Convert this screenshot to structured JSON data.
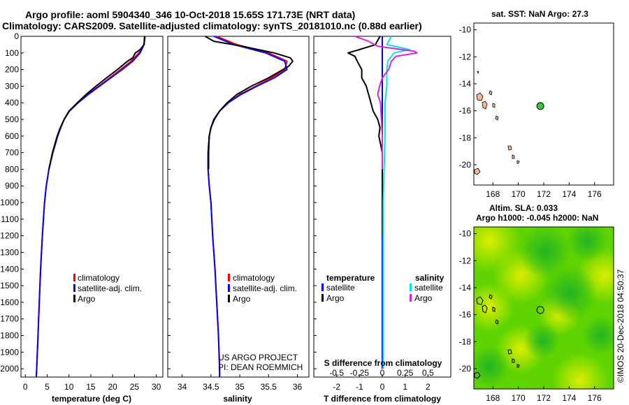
{
  "title_line1": "Argo profile: aoml 5904340_346 10-Oct-2018 15.65S 171.73E (NRT data)",
  "title_line2": "Climatology: CARS2009. Satellite-adjusted climatology: synTS_20181010.nc (0.88d earlier)",
  "sst_label": "sat. SST: NaN Argo: 27.3",
  "sla_label1": "Altim. SLA: 0.033",
  "sla_label2": "Argo h1000: -0.045 h2000: NaN",
  "credit": "©IMOS 20-Dec-2018 04:50:37",
  "project_line1": "US ARGO PROJECT",
  "project_line2": "PI: DEAN ROEMMICH",
  "colors": {
    "climatology": "#ff0000",
    "satellite": "#0000ff",
    "argo": "#000000",
    "sal_sat": "#00e5e5",
    "sal_argo": "#e020e0",
    "land": "#f5b88f",
    "float": "#33cc33"
  },
  "legend": {
    "climatology": "climatology",
    "satellite_adj": "satellite-adj. clim.",
    "argo": "Argo",
    "temperature": "temperature",
    "salinity": "salinity",
    "satellite": "satellite"
  },
  "chart_data": [
    {
      "type": "line",
      "name": "temperature",
      "xlabel": "temperature (deg C)",
      "ylabel": "",
      "xlim": [
        -1,
        31.5
      ],
      "ylim": [
        2050,
        0
      ],
      "xticks": [
        "0",
        "5",
        "10",
        "15",
        "20",
        "25",
        "30"
      ],
      "yticks": [
        "0",
        "100",
        "200",
        "300",
        "400",
        "500",
        "600",
        "700",
        "800",
        "900",
        "1000",
        "1100",
        "1200",
        "1300",
        "1400",
        "1500",
        "1600",
        "1700",
        "1800",
        "1900",
        "2000"
      ],
      "series": [
        {
          "name": "climatology",
          "depth": [
            0,
            50,
            100,
            150,
            200,
            250,
            300,
            350,
            400,
            450,
            500,
            550,
            600,
            700,
            800,
            900,
            1000,
            1200,
            1400,
            1600,
            1800,
            2000,
            2050
          ],
          "values": [
            27.4,
            27.2,
            26.0,
            24.2,
            21.8,
            19.3,
            16.8,
            14.3,
            12.0,
            10.1,
            8.9,
            8.1,
            7.4,
            6.3,
            5.4,
            4.8,
            4.4,
            3.9,
            3.5,
            3.2,
            2.9,
            2.6,
            2.5
          ]
        },
        {
          "name": "satellite-adj. clim.",
          "depth": [
            0,
            50,
            100,
            150,
            200,
            250,
            300,
            350,
            400,
            450,
            500,
            550,
            600,
            700,
            800,
            900,
            1000,
            1200,
            1400,
            1600,
            1800,
            2000,
            2050
          ],
          "values": [
            27.4,
            27.2,
            26.3,
            24.6,
            22.2,
            19.6,
            17.0,
            14.4,
            12.1,
            10.1,
            8.9,
            8.1,
            7.4,
            6.3,
            5.4,
            4.8,
            4.4,
            3.9,
            3.5,
            3.2,
            2.9,
            2.6,
            2.5
          ]
        },
        {
          "name": "Argo",
          "depth": [
            0,
            50,
            80,
            100,
            130,
            150,
            200,
            250,
            300,
            350,
            400,
            450,
            500,
            550,
            600,
            700,
            800
          ],
          "values": [
            27.3,
            27.2,
            26.3,
            25.2,
            24.6,
            23.4,
            21.1,
            18.6,
            16.2,
            13.9,
            11.9,
            10.0,
            8.9,
            8.0,
            7.3,
            6.2,
            5.4
          ]
        }
      ]
    },
    {
      "type": "line",
      "name": "salinity",
      "xlabel": "salinity",
      "ylabel": "",
      "xlim": [
        33.75,
        36.2
      ],
      "ylim": [
        2050,
        0
      ],
      "xticks": [
        "34",
        "34.5",
        "35",
        "35.5",
        "36"
      ],
      "series": [
        {
          "name": "climatology",
          "depth": [
            0,
            50,
            100,
            150,
            200,
            250,
            300,
            350,
            400,
            450,
            500,
            550,
            600,
            700,
            800,
            900,
            1000,
            1200,
            1400,
            1600,
            1800,
            2000,
            2050
          ],
          "values": [
            34.6,
            34.95,
            35.5,
            35.82,
            35.78,
            35.55,
            35.28,
            35.0,
            34.8,
            34.65,
            34.55,
            34.5,
            34.47,
            34.45,
            34.45,
            34.47,
            34.5,
            34.53,
            34.57,
            34.6,
            34.63,
            34.65,
            34.65
          ]
        },
        {
          "name": "satellite-adj. clim.",
          "depth": [
            0,
            50,
            100,
            150,
            200,
            250,
            300,
            350,
            400,
            450,
            500,
            550,
            600,
            700,
            800,
            900,
            1000,
            1200,
            1400,
            1600,
            1800,
            2000,
            2050
          ],
          "values": [
            34.55,
            34.9,
            35.45,
            35.78,
            35.82,
            35.6,
            35.3,
            35.02,
            34.8,
            34.65,
            34.55,
            34.5,
            34.47,
            34.45,
            34.45,
            34.47,
            34.5,
            34.53,
            34.57,
            34.6,
            34.63,
            34.65,
            34.65
          ]
        },
        {
          "name": "Argo",
          "depth": [
            0,
            30,
            60,
            100,
            130,
            150,
            180,
            200,
            250,
            300,
            350,
            400,
            450,
            500,
            550,
            600,
            700,
            800
          ],
          "values": [
            34.4,
            34.55,
            35.05,
            35.6,
            35.88,
            35.92,
            35.85,
            35.75,
            35.5,
            35.2,
            34.95,
            34.78,
            34.65,
            34.56,
            34.5,
            34.47,
            34.46,
            34.46
          ]
        }
      ]
    },
    {
      "type": "line",
      "name": "difference",
      "xlabel": "T difference from climatology",
      "xlabel_top": "S difference from climatology",
      "xlim": [
        -3,
        3
      ],
      "ylim": [
        2050,
        0
      ],
      "xticks": [
        "-2",
        "-1",
        "0",
        "1",
        "2"
      ],
      "sticks": [
        "-0.5",
        "-0.25",
        "0",
        "0.25",
        "0.5"
      ],
      "series": [
        {
          "name": "T satellite",
          "depth": [
            0,
            100,
            200,
            400,
            800,
            2000
          ],
          "values": [
            0,
            0,
            0,
            0,
            0,
            0
          ]
        },
        {
          "name": "T Argo",
          "depth": [
            0,
            50,
            80,
            100,
            120,
            150,
            200,
            250,
            300,
            350,
            400,
            450,
            500,
            550,
            600,
            700,
            800,
            900,
            1000,
            1100,
            1200
          ],
          "values": [
            -0.1,
            -0.3,
            -1.0,
            -1.5,
            -1.2,
            -1.1,
            -0.9,
            -0.9,
            -0.7,
            -0.6,
            -0.5,
            -0.4,
            -0.2,
            -0.1,
            -0.15,
            0,
            0,
            0,
            0,
            0,
            0
          ]
        },
        {
          "name": "S satellite",
          "depth": [
            0,
            50,
            80,
            100,
            150,
            200,
            300,
            400,
            600,
            800,
            1000,
            1400,
            2000
          ],
          "values": [
            0.1,
            0.05,
            0.3,
            0.13,
            0.06,
            0.05,
            0.05,
            0.03,
            0.03,
            0.02,
            0.01,
            0.01,
            0.01
          ]
        },
        {
          "name": "S Argo",
          "depth": [
            0,
            30,
            60,
            90,
            100,
            120,
            150,
            200,
            250,
            300,
            350,
            400,
            500,
            600,
            800
          ],
          "values": [
            -0.3,
            -0.15,
            -0.05,
            0.35,
            0.38,
            0.15,
            0.1,
            0.07,
            0.0,
            -0.03,
            -0.05,
            -0.02,
            -0.01,
            0,
            0
          ]
        }
      ]
    },
    {
      "type": "scatter",
      "name": "sst-map",
      "xlim": [
        166.5,
        177.5
      ],
      "ylim": [
        -21.5,
        -9.5
      ],
      "xticks": [
        "168",
        "170",
        "172",
        "174",
        "176"
      ],
      "yticks": [
        "-10",
        "-12",
        "-14",
        "-16",
        "-18",
        "-20"
      ],
      "float_position": {
        "lon": 171.73,
        "lat": -15.65
      }
    },
    {
      "type": "heatmap",
      "name": "sla-map",
      "xlim": [
        166.5,
        177.5
      ],
      "ylim": [
        -21.5,
        -9.5
      ],
      "xticks": [
        "168",
        "170",
        "172",
        "174",
        "176"
      ],
      "yticks": [
        "-10",
        "-12",
        "-14",
        "-16",
        "-18",
        "-20"
      ],
      "float_position": {
        "lon": 171.73,
        "lat": -15.65
      }
    }
  ]
}
